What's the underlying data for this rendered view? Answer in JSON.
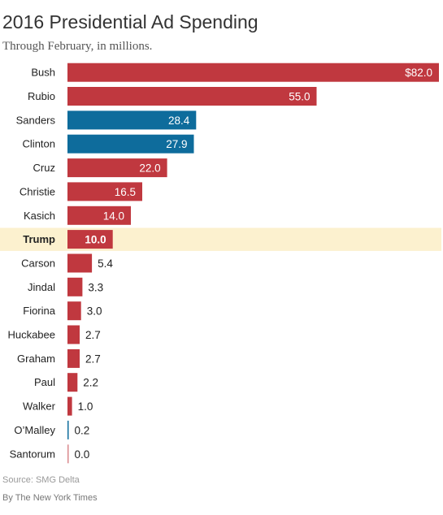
{
  "chart_data": {
    "type": "bar",
    "orientation": "horizontal",
    "title": "2016 Presidential Ad Spending",
    "subtitle": "Through February, in millions.",
    "categories": [
      "Bush",
      "Rubio",
      "Sanders",
      "Clinton",
      "Cruz",
      "Christie",
      "Kasich",
      "Trump",
      "Carson",
      "Jindal",
      "Fiorina",
      "Huckabee",
      "Graham",
      "Paul",
      "Walker",
      "O’Malley",
      "Santorum"
    ],
    "values": [
      82.0,
      55.0,
      28.4,
      27.9,
      22.0,
      16.5,
      14.0,
      10.0,
      5.4,
      3.3,
      3.0,
      2.7,
      2.7,
      2.2,
      1.0,
      0.2,
      0.0
    ],
    "value_labels": [
      "$82.0",
      "55.0",
      "28.4",
      "27.9",
      "22.0",
      "16.5",
      "14.0",
      "10.0",
      "5.4",
      "3.3",
      "3.0",
      "2.7",
      "2.7",
      "2.2",
      "1.0",
      "0.2",
      "0.0"
    ],
    "party": [
      "R",
      "R",
      "D",
      "D",
      "R",
      "R",
      "R",
      "R",
      "R",
      "R",
      "R",
      "R",
      "R",
      "R",
      "R",
      "D",
      "R"
    ],
    "highlight": "Trump",
    "xlim": [
      0,
      82
    ],
    "grid": false,
    "legend": "none",
    "colors": {
      "R": "#c0383f",
      "D": "#0e6c9c",
      "highlight_background": "#fcf1cf"
    }
  },
  "footer": {
    "source": "Source: SMG Delta",
    "credit": "By The New York Times"
  }
}
